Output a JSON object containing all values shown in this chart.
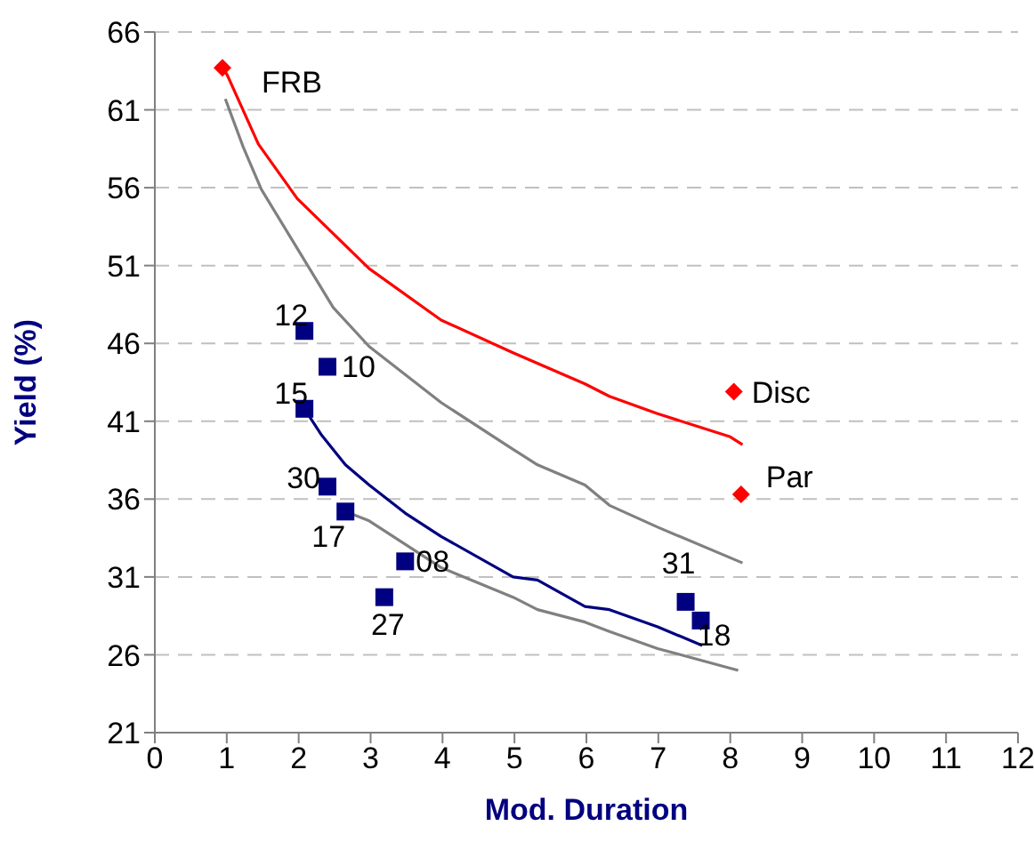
{
  "chart_data": {
    "type": "scatter",
    "xlabel": "Mod. Duration",
    "ylabel": "Yield (%)",
    "xlim": [
      0,
      12
    ],
    "xticks": [
      0,
      1,
      2,
      3,
      4,
      5,
      6,
      7,
      8,
      9,
      10,
      11,
      12
    ],
    "ylim": [
      21,
      66
    ],
    "yticks": [
      21,
      26,
      31,
      36,
      41,
      46,
      51,
      56,
      61,
      66
    ],
    "grid": "y",
    "legend": false,
    "series": [
      {
        "type": "line",
        "color": "#ff0000",
        "marker": "none",
        "line_style": "solid",
        "x": [
          0.95,
          1.0,
          1.44,
          1.98,
          2.98,
          3.98,
          4.98,
          5.98,
          6.32,
          6.98,
          8.0,
          8.17
        ],
        "values": [
          63.6,
          63.3,
          58.8,
          55.3,
          50.8,
          47.5,
          45.4,
          43.4,
          42.6,
          41.5,
          40.0,
          39.5
        ]
      },
      {
        "type": "line",
        "color": "#808080",
        "marker": "none",
        "line_style": "solid",
        "x": [
          0.98,
          1.23,
          1.48,
          1.98,
          2.48,
          2.98,
          3.98,
          4.98,
          5.32,
          5.98,
          6.32,
          6.99,
          8.17
        ],
        "values": [
          61.7,
          58.6,
          55.9,
          52.1,
          48.3,
          45.8,
          42.2,
          39.2,
          38.2,
          36.9,
          35.6,
          34.2,
          31.9
        ]
      },
      {
        "type": "line",
        "color": "#000080",
        "marker": "none",
        "line_style": "solid",
        "x": [
          2.08,
          2.32,
          2.65,
          2.98,
          3.48,
          3.98,
          4.98,
          5.32,
          5.98,
          6.32,
          6.99,
          7.61
        ],
        "values": [
          41.8,
          40.1,
          38.2,
          36.9,
          35.1,
          33.6,
          31.0,
          30.8,
          29.1,
          28.9,
          27.8,
          26.6
        ]
      },
      {
        "type": "line",
        "color": "#808080",
        "marker": "none",
        "line_style": "solid",
        "x": [
          2.65,
          2.98,
          3.98,
          4.98,
          5.32,
          5.98,
          6.32,
          6.99,
          8.11
        ],
        "values": [
          35.2,
          34.6,
          31.6,
          29.7,
          28.9,
          28.1,
          27.5,
          26.4,
          25.0
        ]
      },
      {
        "color": "#ff0000",
        "marker": "diamond",
        "x": [
          0.94,
          8.05,
          8.15
        ],
        "values": [
          63.7,
          42.9,
          36.3
        ]
      },
      {
        "color": "#000080",
        "marker": "square",
        "x": [
          2.08,
          2.4,
          2.08,
          2.4,
          2.65,
          3.48,
          3.19,
          7.38,
          7.59
        ],
        "values": [
          46.8,
          44.5,
          41.8,
          36.8,
          35.2,
          32.0,
          29.7,
          29.4,
          28.2
        ]
      }
    ],
    "annotations": [
      {
        "text": "FRB",
        "x": 0.94,
        "y": 63.7
      },
      {
        "text": "Disc",
        "x": 8.05,
        "y": 42.9
      },
      {
        "text": "Par",
        "x": 8.15,
        "y": 36.3
      },
      {
        "text": "12",
        "x": 2.08,
        "y": 46.8
      },
      {
        "text": "10",
        "x": 2.4,
        "y": 44.5
      },
      {
        "text": "15",
        "x": 2.08,
        "y": 41.8
      },
      {
        "text": "30",
        "x": 2.4,
        "y": 36.8
      },
      {
        "text": "17",
        "x": 2.65,
        "y": 35.2
      },
      {
        "text": "08",
        "x": 3.48,
        "y": 32.0
      },
      {
        "text": "27",
        "x": 3.19,
        "y": 29.7
      },
      {
        "text": "31",
        "x": 7.38,
        "y": 29.4
      },
      {
        "text": "18",
        "x": 7.59,
        "y": 28.2
      }
    ]
  }
}
